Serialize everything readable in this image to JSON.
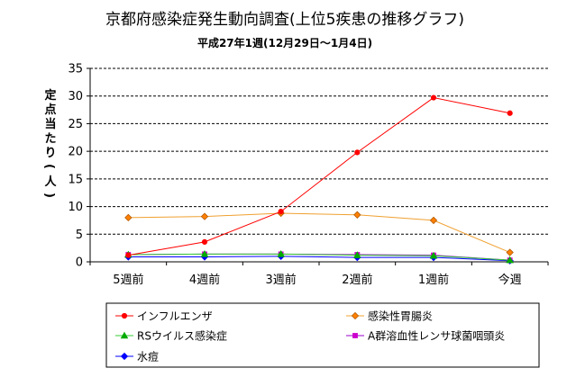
{
  "chart_data": {
    "type": "line",
    "title": "京都府感染症発生動向調査(上位5疾患の推移グラフ)",
    "subtitle": "平成27年1週(12月29日～1月4日)",
    "xlabel": "",
    "ylabel": "定点当たり(人)",
    "categories": [
      "5週前",
      "4週前",
      "3週前",
      "2週前",
      "1週前",
      "今週"
    ],
    "ylim": [
      0,
      35
    ],
    "yticks": [
      0,
      5,
      10,
      15,
      20,
      25,
      30,
      35
    ],
    "grid": true,
    "legend_position": "bottom",
    "series": [
      {
        "name": "インフルエンザ",
        "color": "#ff0000",
        "marker": "circle",
        "marker_color": "#ff0000",
        "values": [
          1.2,
          3.6,
          9.1,
          19.8,
          29.7,
          26.9
        ]
      },
      {
        "name": "感染性胃腸炎",
        "color": "#f0a030",
        "marker": "diamond",
        "marker_color": "#ff8000",
        "values": [
          8.0,
          8.2,
          8.8,
          8.5,
          7.5,
          1.7
        ]
      },
      {
        "name": "RSウイルス感染症",
        "color": "#33cc33",
        "marker": "triangle",
        "marker_color": "#00aa00",
        "values": [
          1.3,
          1.4,
          1.4,
          1.2,
          1.1,
          0.3
        ]
      },
      {
        "name": "A群溶血性レンサ球菌咽頭炎",
        "color": "#9900cc",
        "marker": "square",
        "marker_color": "#cc00cc",
        "values": [
          1.3,
          1.4,
          1.4,
          1.3,
          1.2,
          0.3
        ]
      },
      {
        "name": "水痘",
        "color": "#0000ff",
        "marker": "diamond",
        "marker_color": "#0000ff",
        "values": [
          0.9,
          0.9,
          1.0,
          0.8,
          0.8,
          0.2
        ]
      }
    ]
  }
}
